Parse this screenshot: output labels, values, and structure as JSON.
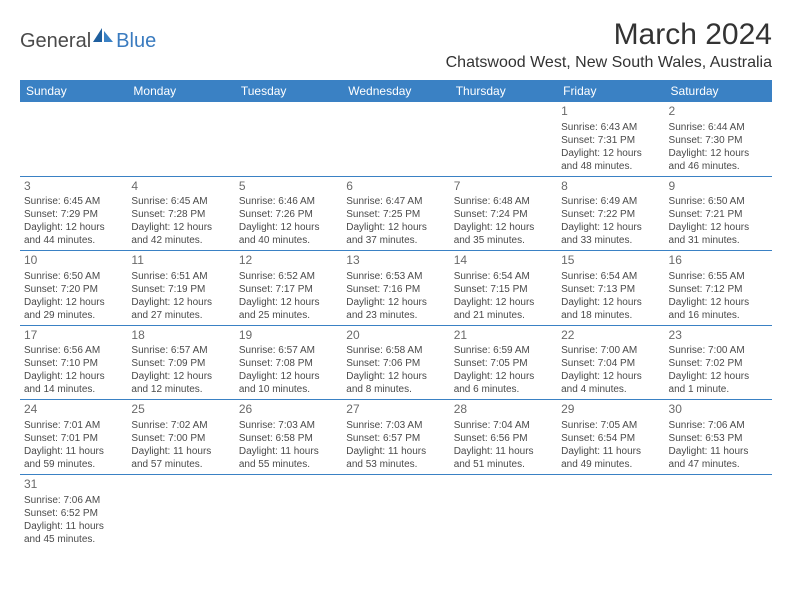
{
  "logo": {
    "part1": "General",
    "part2": "Blue"
  },
  "title": "March 2024",
  "location": "Chatswood West, New South Wales, Australia",
  "colors": {
    "header_bg": "#3a81c4",
    "header_text": "#ffffff",
    "cell_text": "#4a4a4a",
    "border": "#3a81c4",
    "logo_gray": "#4a4a4a",
    "logo_blue": "#3a7bbf"
  },
  "day_headers": [
    "Sunday",
    "Monday",
    "Tuesday",
    "Wednesday",
    "Thursday",
    "Friday",
    "Saturday"
  ],
  "weeks": [
    [
      null,
      null,
      null,
      null,
      null,
      {
        "n": "1",
        "sr": "Sunrise: 6:43 AM",
        "ss": "Sunset: 7:31 PM",
        "d1": "Daylight: 12 hours",
        "d2": "and 48 minutes."
      },
      {
        "n": "2",
        "sr": "Sunrise: 6:44 AM",
        "ss": "Sunset: 7:30 PM",
        "d1": "Daylight: 12 hours",
        "d2": "and 46 minutes."
      }
    ],
    [
      {
        "n": "3",
        "sr": "Sunrise: 6:45 AM",
        "ss": "Sunset: 7:29 PM",
        "d1": "Daylight: 12 hours",
        "d2": "and 44 minutes."
      },
      {
        "n": "4",
        "sr": "Sunrise: 6:45 AM",
        "ss": "Sunset: 7:28 PM",
        "d1": "Daylight: 12 hours",
        "d2": "and 42 minutes."
      },
      {
        "n": "5",
        "sr": "Sunrise: 6:46 AM",
        "ss": "Sunset: 7:26 PM",
        "d1": "Daylight: 12 hours",
        "d2": "and 40 minutes."
      },
      {
        "n": "6",
        "sr": "Sunrise: 6:47 AM",
        "ss": "Sunset: 7:25 PM",
        "d1": "Daylight: 12 hours",
        "d2": "and 37 minutes."
      },
      {
        "n": "7",
        "sr": "Sunrise: 6:48 AM",
        "ss": "Sunset: 7:24 PM",
        "d1": "Daylight: 12 hours",
        "d2": "and 35 minutes."
      },
      {
        "n": "8",
        "sr": "Sunrise: 6:49 AM",
        "ss": "Sunset: 7:22 PM",
        "d1": "Daylight: 12 hours",
        "d2": "and 33 minutes."
      },
      {
        "n": "9",
        "sr": "Sunrise: 6:50 AM",
        "ss": "Sunset: 7:21 PM",
        "d1": "Daylight: 12 hours",
        "d2": "and 31 minutes."
      }
    ],
    [
      {
        "n": "10",
        "sr": "Sunrise: 6:50 AM",
        "ss": "Sunset: 7:20 PM",
        "d1": "Daylight: 12 hours",
        "d2": "and 29 minutes."
      },
      {
        "n": "11",
        "sr": "Sunrise: 6:51 AM",
        "ss": "Sunset: 7:19 PM",
        "d1": "Daylight: 12 hours",
        "d2": "and 27 minutes."
      },
      {
        "n": "12",
        "sr": "Sunrise: 6:52 AM",
        "ss": "Sunset: 7:17 PM",
        "d1": "Daylight: 12 hours",
        "d2": "and 25 minutes."
      },
      {
        "n": "13",
        "sr": "Sunrise: 6:53 AM",
        "ss": "Sunset: 7:16 PM",
        "d1": "Daylight: 12 hours",
        "d2": "and 23 minutes."
      },
      {
        "n": "14",
        "sr": "Sunrise: 6:54 AM",
        "ss": "Sunset: 7:15 PM",
        "d1": "Daylight: 12 hours",
        "d2": "and 21 minutes."
      },
      {
        "n": "15",
        "sr": "Sunrise: 6:54 AM",
        "ss": "Sunset: 7:13 PM",
        "d1": "Daylight: 12 hours",
        "d2": "and 18 minutes."
      },
      {
        "n": "16",
        "sr": "Sunrise: 6:55 AM",
        "ss": "Sunset: 7:12 PM",
        "d1": "Daylight: 12 hours",
        "d2": "and 16 minutes."
      }
    ],
    [
      {
        "n": "17",
        "sr": "Sunrise: 6:56 AM",
        "ss": "Sunset: 7:10 PM",
        "d1": "Daylight: 12 hours",
        "d2": "and 14 minutes."
      },
      {
        "n": "18",
        "sr": "Sunrise: 6:57 AM",
        "ss": "Sunset: 7:09 PM",
        "d1": "Daylight: 12 hours",
        "d2": "and 12 minutes."
      },
      {
        "n": "19",
        "sr": "Sunrise: 6:57 AM",
        "ss": "Sunset: 7:08 PM",
        "d1": "Daylight: 12 hours",
        "d2": "and 10 minutes."
      },
      {
        "n": "20",
        "sr": "Sunrise: 6:58 AM",
        "ss": "Sunset: 7:06 PM",
        "d1": "Daylight: 12 hours",
        "d2": "and 8 minutes."
      },
      {
        "n": "21",
        "sr": "Sunrise: 6:59 AM",
        "ss": "Sunset: 7:05 PM",
        "d1": "Daylight: 12 hours",
        "d2": "and 6 minutes."
      },
      {
        "n": "22",
        "sr": "Sunrise: 7:00 AM",
        "ss": "Sunset: 7:04 PM",
        "d1": "Daylight: 12 hours",
        "d2": "and 4 minutes."
      },
      {
        "n": "23",
        "sr": "Sunrise: 7:00 AM",
        "ss": "Sunset: 7:02 PM",
        "d1": "Daylight: 12 hours",
        "d2": "and 1 minute."
      }
    ],
    [
      {
        "n": "24",
        "sr": "Sunrise: 7:01 AM",
        "ss": "Sunset: 7:01 PM",
        "d1": "Daylight: 11 hours",
        "d2": "and 59 minutes."
      },
      {
        "n": "25",
        "sr": "Sunrise: 7:02 AM",
        "ss": "Sunset: 7:00 PM",
        "d1": "Daylight: 11 hours",
        "d2": "and 57 minutes."
      },
      {
        "n": "26",
        "sr": "Sunrise: 7:03 AM",
        "ss": "Sunset: 6:58 PM",
        "d1": "Daylight: 11 hours",
        "d2": "and 55 minutes."
      },
      {
        "n": "27",
        "sr": "Sunrise: 7:03 AM",
        "ss": "Sunset: 6:57 PM",
        "d1": "Daylight: 11 hours",
        "d2": "and 53 minutes."
      },
      {
        "n": "28",
        "sr": "Sunrise: 7:04 AM",
        "ss": "Sunset: 6:56 PM",
        "d1": "Daylight: 11 hours",
        "d2": "and 51 minutes."
      },
      {
        "n": "29",
        "sr": "Sunrise: 7:05 AM",
        "ss": "Sunset: 6:54 PM",
        "d1": "Daylight: 11 hours",
        "d2": "and 49 minutes."
      },
      {
        "n": "30",
        "sr": "Sunrise: 7:06 AM",
        "ss": "Sunset: 6:53 PM",
        "d1": "Daylight: 11 hours",
        "d2": "and 47 minutes."
      }
    ],
    [
      {
        "n": "31",
        "sr": "Sunrise: 7:06 AM",
        "ss": "Sunset: 6:52 PM",
        "d1": "Daylight: 11 hours",
        "d2": "and 45 minutes."
      },
      null,
      null,
      null,
      null,
      null,
      null
    ]
  ]
}
